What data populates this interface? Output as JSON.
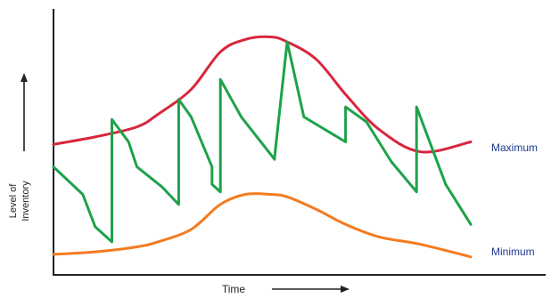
{
  "chart_data": {
    "type": "line",
    "title": "",
    "xlabel": "Time",
    "ylabel": "Level of Inventory",
    "x_arrow": "right",
    "y_arrow": "up",
    "grid": false,
    "ticks": "none",
    "xlim": [
      0,
      100
    ],
    "ylim": [
      0,
      100
    ],
    "series": [
      {
        "name": "Maximum",
        "color": "#d7263d",
        "x": [
          0,
          10,
          20,
          25,
          33,
          40,
          46,
          52,
          56,
          63,
          70,
          78,
          88,
          100
        ],
        "y": [
          49,
          52,
          56,
          61,
          71,
          86,
          91,
          92,
          90,
          83,
          69,
          55,
          46,
          50
        ]
      },
      {
        "name": "Minimum",
        "color": "#f47b20",
        "x": [
          0,
          10,
          20,
          25,
          33,
          40,
          46,
          52,
          56,
          63,
          70,
          78,
          88,
          100
        ],
        "y": [
          5,
          6,
          8,
          10,
          15,
          25,
          29,
          29,
          28,
          23,
          17,
          12,
          9,
          4
        ]
      },
      {
        "name": "",
        "color": "#1ea24a",
        "x": [
          0,
          7,
          10,
          14,
          14,
          18,
          20,
          26,
          30,
          30,
          33,
          38,
          38,
          40,
          40,
          45,
          53,
          53,
          56,
          60,
          70,
          70,
          75,
          81,
          87,
          87,
          94,
          100
        ],
        "y": [
          40,
          29,
          16,
          10,
          59,
          50,
          40,
          32,
          25,
          67,
          60,
          40,
          33,
          30,
          75,
          60,
          43,
          44,
          90,
          60,
          50,
          64,
          58,
          42,
          30,
          64,
          33,
          17
        ]
      }
    ]
  },
  "labels": {
    "maximum": "Maximum",
    "minimum": "Minimum",
    "time": "Time",
    "level_line1": "Level of",
    "level_line2": "Inventory"
  },
  "colors": {
    "axis": "#222222",
    "label_blue": "#1f3a93",
    "text": "#222222"
  }
}
